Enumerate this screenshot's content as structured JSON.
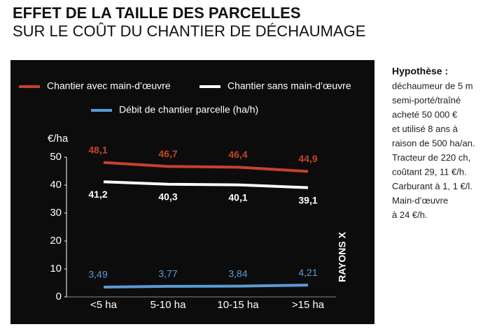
{
  "chart_data": {
    "type": "line",
    "title": "EFFET DE LA TAILLE DES PARCELLES",
    "subtitle": "SUR LE COÛT DU CHANTIER DE DÉCHAUMAGE",
    "y_label": "€/ha",
    "categories": [
      "<5 ha",
      "5-10 ha",
      "10-15 ha",
      ">15 ha"
    ],
    "series": [
      {
        "name": "Chantier avec main-d’œuvre",
        "color": "#c8412b",
        "values": [
          48.1,
          46.7,
          46.4,
          44.9
        ],
        "value_labels": [
          "48,1",
          "46,7",
          "46,4",
          "44,9"
        ]
      },
      {
        "name": "Chantier sans main-d’œuvre",
        "color": "#ffffff",
        "values": [
          41.2,
          40.3,
          40.1,
          39.1
        ],
        "value_labels": [
          "41,2",
          "40,3",
          "40,1",
          "39,1"
        ]
      },
      {
        "name": "Débit de chantier parcelle (ha/h)",
        "color": "#5b9bd5",
        "values": [
          3.49,
          3.77,
          3.84,
          4.21
        ],
        "value_labels": [
          "3,49",
          "3,77",
          "3,84",
          "4,21"
        ]
      }
    ],
    "ylim": [
      0,
      50
    ],
    "yticks": [
      0,
      10,
      20,
      30,
      40,
      50
    ],
    "grid": false,
    "credit": "RAYONS X",
    "note_title": "Hypothèse :",
    "note_lines": [
      "déchaumeur de 5 m",
      "semi-porté/traîné",
      "acheté 50 000 €",
      "et utilisé 8 ans à",
      "raison de 500 ha/an.",
      "Tracteur de 220 ch,",
      "coûtant 29, 11 €/h.",
      "Carburant à 1, 1 €/l.",
      "Main-d’œuvre",
      "à 24 €/h."
    ]
  }
}
